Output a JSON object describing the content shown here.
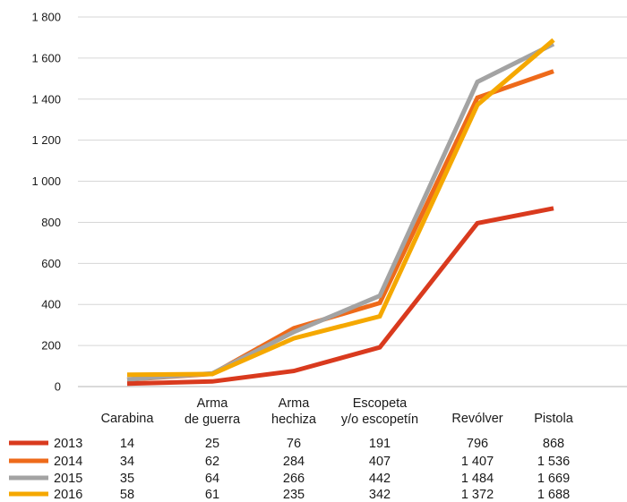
{
  "chart_data": {
    "type": "line",
    "categories": [
      "Carabina",
      "Arma de guerra",
      "Arma hechiza",
      "Escopeta y/o escopetín",
      "Revólver",
      "Pistola"
    ],
    "category_label_lines": [
      [
        "Carabina"
      ],
      [
        "Arma",
        "de guerra"
      ],
      [
        "Arma",
        "hechiza"
      ],
      [
        "Escopeta",
        "y/o escopetín"
      ],
      [
        "Revólver"
      ],
      [
        "Pistola"
      ]
    ],
    "y_ticks": [
      "0",
      "200",
      "400",
      "600",
      "800",
      "1 000",
      "1 200",
      "1 400",
      "1 600",
      "1 800"
    ],
    "ylim": [
      0,
      1800
    ],
    "grid": true,
    "series": [
      {
        "name": "2013",
        "color": "#d93a1e",
        "values": [
          14,
          25,
          76,
          191,
          796,
          868
        ],
        "value_labels": [
          "14",
          "25",
          "76",
          "191",
          "796",
          "868"
        ]
      },
      {
        "name": "2014",
        "color": "#ee6a1a",
        "values": [
          34,
          62,
          284,
          407,
          1407,
          1536
        ],
        "value_labels": [
          "34",
          "62",
          "284",
          "407",
          "1 407",
          "1 536"
        ]
      },
      {
        "name": "2015",
        "color": "#a3a3a3",
        "values": [
          35,
          64,
          266,
          442,
          1484,
          1669
        ],
        "value_labels": [
          "35",
          "64",
          "266",
          "442",
          "1 484",
          "1 669"
        ]
      },
      {
        "name": "2016",
        "color": "#f5a800",
        "values": [
          58,
          61,
          235,
          342,
          1372,
          1688
        ],
        "value_labels": [
          "58",
          "61",
          "235",
          "342",
          "1 372",
          "1 688"
        ]
      }
    ],
    "legend_placement": "data-table-below"
  }
}
